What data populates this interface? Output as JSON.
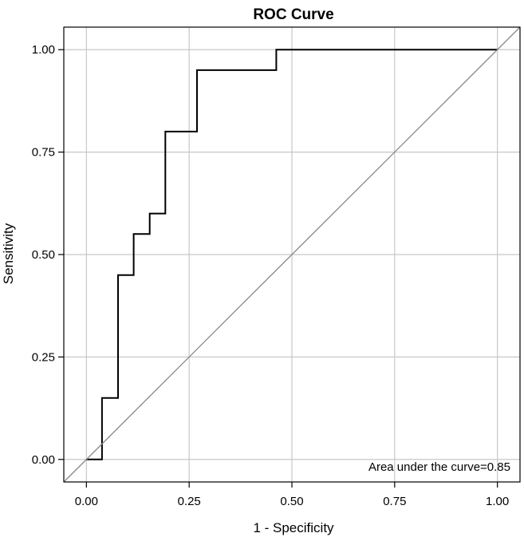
{
  "chart_data": {
    "type": "line",
    "title": "ROC Curve",
    "xlabel": "1 - Specificity",
    "ylabel": "Sensitivity",
    "xlim": [
      -0.055,
      1.055
    ],
    "ylim": [
      -0.055,
      1.055
    ],
    "x_ticks": [
      0,
      0.25,
      0.5,
      0.75,
      1
    ],
    "x_tick_labels": [
      "0.00",
      "0.25",
      "0.50",
      "0.75",
      "1.00"
    ],
    "y_ticks": [
      0,
      0.25,
      0.5,
      0.75,
      1
    ],
    "y_tick_labels": [
      "0.00",
      "0.25",
      "0.50",
      "0.75",
      "1.00"
    ],
    "grid": true,
    "series": [
      {
        "step": true,
        "color": "#000000",
        "x": [
          0,
          0.038,
          0.038,
          0.077,
          0.077,
          0.115,
          0.115,
          0.154,
          0.154,
          0.192,
          0.192,
          0.269,
          0.269,
          0.462,
          0.462,
          1
        ],
        "y": [
          0,
          0,
          0.15,
          0.15,
          0.45,
          0.45,
          0.55,
          0.55,
          0.6,
          0.6,
          0.8,
          0.8,
          0.95,
          0.95,
          1,
          1
        ]
      },
      {
        "color": "#888888",
        "x": [
          -0.055,
          1.055
        ],
        "y": [
          -0.055,
          1.055
        ]
      }
    ],
    "annotation": "Area under the curve=0.85",
    "colors": {
      "grid": "#c8c8c8",
      "frame": "#000000",
      "curve": "#000000",
      "diagonal": "#888888"
    }
  }
}
